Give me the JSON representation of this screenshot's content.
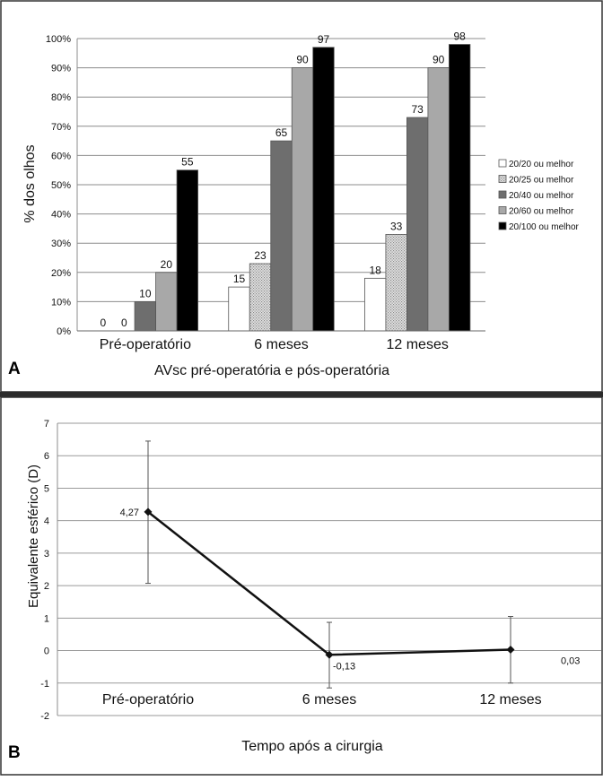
{
  "chart_data": [
    {
      "type": "bar",
      "panel_label": "A",
      "title": "",
      "xlabel": "AVsc pré-operatória e pós-operatória",
      "ylabel": "% dos olhos",
      "ylim": [
        0,
        100
      ],
      "yticks": [
        "0%",
        "10%",
        "20%",
        "30%",
        "40%",
        "50%",
        "60%",
        "70%",
        "80%",
        "90%",
        "100%"
      ],
      "grid": true,
      "legend_position": "right",
      "categories": [
        "Pré-operatório",
        "6 meses",
        "12 meses"
      ],
      "series": [
        {
          "name": "20/20 ou melhor",
          "values": [
            0,
            15,
            18
          ],
          "labels": [
            "0",
            "15",
            "18"
          ],
          "color": "#ffffff",
          "pattern": "white"
        },
        {
          "name": "20/25 ou melhor",
          "values": [
            0,
            23,
            33
          ],
          "labels": [
            "0",
            "23",
            "33"
          ],
          "color": "#cfcfcf",
          "pattern": "dots"
        },
        {
          "name": "20/40 ou melhor",
          "values": [
            10,
            65,
            73
          ],
          "labels": [
            "10",
            "65",
            "73"
          ],
          "color": "#6e6e6e",
          "pattern": "dark-gray"
        },
        {
          "name": "20/60 ou melhor",
          "values": [
            20,
            90,
            90
          ],
          "labels": [
            "20",
            "90",
            "90"
          ],
          "color": "#a8a8a8",
          "pattern": "light-gray"
        },
        {
          "name": "20/100 ou melhor",
          "values": [
            55,
            97,
            98
          ],
          "labels": [
            "55",
            "97",
            "98"
          ],
          "color": "#000000",
          "pattern": "black"
        }
      ]
    },
    {
      "type": "line",
      "panel_label": "B",
      "title": "",
      "xlabel": "Tempo após a cirurgia",
      "ylabel": "Equivalente esférico (D)",
      "ylim": [
        -2,
        7
      ],
      "yticks": [
        "-2",
        "-1",
        "0",
        "1",
        "2",
        "3",
        "4",
        "5",
        "6",
        "7"
      ],
      "grid": true,
      "categories": [
        "Pré-operatório",
        "6 meses",
        "12 meses"
      ],
      "values": [
        4.27,
        -0.13,
        0.03
      ],
      "labels": [
        "4,27",
        "-0,13",
        "0,03"
      ],
      "error_bars": [
        [
          2.07,
          6.45
        ],
        [
          -1.15,
          0.87
        ],
        [
          -1.0,
          1.05
        ]
      ]
    }
  ]
}
